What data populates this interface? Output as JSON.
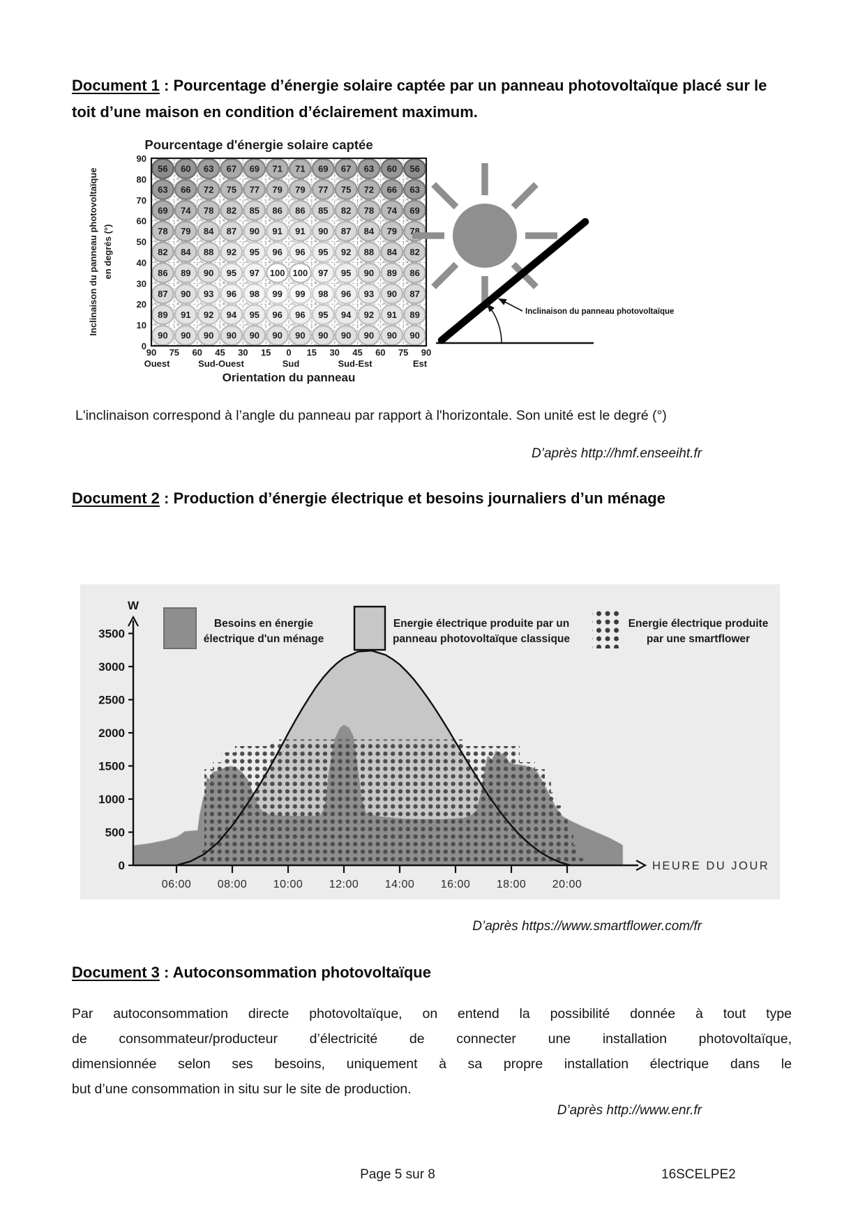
{
  "doc1": {
    "title_label": "Document 1",
    "title_rest": " : Pourcentage d’énergie solaire captée par un panneau photovoltaïque placé sur le toit d’une maison en condition d’éclairement maximum.",
    "note": "L'inclinaison correspond à l’angle du panneau par rapport à l'horizontale. Son unité est le degré (°)",
    "source": "D’après http://hmf.enseeiht.fr",
    "diagram_label": "Inclinaison du panneau photovoltaïque"
  },
  "doc2": {
    "title_label": "Document 2",
    "title_rest": " : Production d’énergie électrique et besoins journaliers d’un ménage",
    "source": "D’après https://www.smartflower.com/fr"
  },
  "doc3": {
    "title_label": "Document 3",
    "title_rest": " : Autoconsommation photovoltaïque",
    "body_lines": [
      "Par autoconsommation directe photovoltaïque, on entend la possibilité donnée à tout type",
      "de consommateur/producteur d’électricité de connecter une installation photovoltaïque,",
      "dimensionnée selon ses besoins, uniquement à sa propre installation électrique dans le",
      "but d’une consommation in situ sur le site de production."
    ],
    "source": "D’après http://www.enr.fr"
  },
  "footer": {
    "center": "Page 5 sur 8",
    "right": "16SCELPE2"
  },
  "chart_data": [
    {
      "type": "heatmap",
      "title": "Pourcentage d'énergie solaire captée",
      "xlabel": "Orientation du panneau",
      "ylabel_line1": "Inclinaison du panneau photovoltaïque",
      "ylabel_line2": "en degrés (°)",
      "y_ticks": [
        "90",
        "80",
        "70",
        "60",
        "50",
        "40",
        "30",
        "20",
        "10",
        "0"
      ],
      "x_boundary_ticks": [
        "90",
        "75",
        "60",
        "45",
        "30",
        "15",
        "0",
        "15",
        "30",
        "45",
        "60",
        "75",
        "90"
      ],
      "x_direction_labels": [
        "Ouest",
        "Sud-Ouest",
        "Sud",
        "Sud-Est",
        "Est"
      ],
      "values_percent": [
        [
          56,
          60,
          63,
          67,
          69,
          71,
          71,
          69,
          67,
          63,
          60,
          56
        ],
        [
          63,
          66,
          72,
          75,
          77,
          79,
          79,
          77,
          75,
          72,
          66,
          63
        ],
        [
          69,
          74,
          78,
          82,
          85,
          86,
          86,
          85,
          82,
          78,
          74,
          69
        ],
        [
          78,
          79,
          84,
          87,
          90,
          91,
          91,
          90,
          87,
          84,
          79,
          78
        ],
        [
          82,
          84,
          88,
          92,
          95,
          96,
          96,
          95,
          92,
          88,
          84,
          82
        ],
        [
          86,
          89,
          90,
          95,
          97,
          100,
          100,
          97,
          95,
          90,
          89,
          86
        ],
        [
          87,
          90,
          93,
          96,
          98,
          99,
          99,
          98,
          96,
          93,
          90,
          87
        ],
        [
          89,
          91,
          92,
          94,
          95,
          96,
          96,
          95,
          94,
          92,
          91,
          89
        ],
        [
          90,
          90,
          90,
          90,
          90,
          90,
          90,
          90,
          90,
          90,
          90,
          90
        ]
      ]
    },
    {
      "type": "area",
      "ylabel": "W",
      "xlabel": "HEURE DU JOUR",
      "ylim": [
        0,
        3500
      ],
      "y_ticks": [
        "3500",
        "3000",
        "2500",
        "2000",
        "1500",
        "1000",
        "500",
        "0"
      ],
      "x_ticks": [
        "06:00",
        "08:00",
        "10:00",
        "12:00",
        "14:00",
        "16:00",
        "18:00",
        "20:00"
      ],
      "colors": {
        "besoins": "#8e8e8e",
        "panneau_fill": "#c7c7c7",
        "curve": "#101010",
        "dots": "#4d4d4d",
        "panel_bg": "#ececec"
      },
      "legend": [
        {
          "label_lines": [
            "Besoins en énergie",
            "électrique d'un ménage"
          ],
          "style": "solid-dark-gray"
        },
        {
          "label_lines": [
            "Energie électrique produite par un",
            "panneau photovoltaïque classique"
          ],
          "style": "light-gray-black-outline"
        },
        {
          "label_lines": [
            "Energie électrique produite",
            "par une smartflower"
          ],
          "style": "dotted"
        }
      ],
      "series": [
        {
          "name": "Besoins en énergie électrique d'un ménage",
          "unit": "W",
          "points_time_w": [
            [
              4.42,
              300
            ],
            [
              5.0,
              330
            ],
            [
              5.6,
              380
            ],
            [
              6.0,
              430
            ],
            [
              6.15,
              470
            ],
            [
              6.3,
              515
            ],
            [
              6.75,
              530
            ],
            [
              6.82,
              760
            ],
            [
              6.95,
              1020
            ],
            [
              7.02,
              1080
            ],
            [
              7.08,
              1340
            ],
            [
              7.18,
              1300
            ],
            [
              7.3,
              1410
            ],
            [
              7.55,
              1440
            ],
            [
              7.75,
              1480
            ],
            [
              7.95,
              1500
            ],
            [
              8.15,
              1470
            ],
            [
              8.35,
              1410
            ],
            [
              8.55,
              1300
            ],
            [
              8.7,
              1150
            ],
            [
              8.85,
              980
            ],
            [
              9.05,
              830
            ],
            [
              9.3,
              775
            ],
            [
              9.8,
              755
            ],
            [
              10.8,
              750
            ],
            [
              11.15,
              760
            ],
            [
              11.3,
              880
            ],
            [
              11.45,
              1420
            ],
            [
              11.65,
              1900
            ],
            [
              11.85,
              2080
            ],
            [
              12.0,
              2125
            ],
            [
              12.2,
              2080
            ],
            [
              12.35,
              1950
            ],
            [
              12.5,
              1500
            ],
            [
              12.65,
              1000
            ],
            [
              12.8,
              800
            ],
            [
              13.2,
              745
            ],
            [
              14.2,
              705
            ],
            [
              15.5,
              700
            ],
            [
              16.3,
              720
            ],
            [
              16.7,
              790
            ],
            [
              16.9,
              1080
            ],
            [
              17.05,
              1480
            ],
            [
              17.15,
              1660
            ],
            [
              17.3,
              1600
            ],
            [
              17.45,
              1740
            ],
            [
              17.6,
              1670
            ],
            [
              17.75,
              1710
            ],
            [
              17.9,
              1570
            ],
            [
              18.1,
              1530
            ],
            [
              18.45,
              1510
            ],
            [
              18.75,
              1480
            ],
            [
              18.95,
              1400
            ],
            [
              19.3,
              1130
            ],
            [
              19.6,
              880
            ],
            [
              19.85,
              740
            ],
            [
              20.15,
              670
            ],
            [
              20.5,
              600
            ],
            [
              21.0,
              510
            ],
            [
              21.5,
              420
            ],
            [
              21.95,
              320
            ],
            [
              22.0,
              300
            ]
          ]
        },
        {
          "name": "Energie électrique produite par un panneau photovoltaïque classique",
          "unit": "W",
          "points_time_w": [
            [
              6.0,
              0
            ],
            [
              6.5,
              60
            ],
            [
              7.0,
              170
            ],
            [
              7.5,
              350
            ],
            [
              8.0,
              600
            ],
            [
              8.5,
              900
            ],
            [
              9.0,
              1230
            ],
            [
              9.25,
              1410
            ],
            [
              9.5,
              1600
            ],
            [
              9.75,
              1790
            ],
            [
              10.0,
              1990
            ],
            [
              10.25,
              2180
            ],
            [
              10.5,
              2360
            ],
            [
              10.75,
              2530
            ],
            [
              11.0,
              2690
            ],
            [
              11.25,
              2830
            ],
            [
              11.5,
              2950
            ],
            [
              11.75,
              3050
            ],
            [
              12.0,
              3130
            ],
            [
              12.5,
              3225
            ],
            [
              13.0,
              3240
            ],
            [
              13.5,
              3175
            ],
            [
              13.75,
              3110
            ],
            [
              14.0,
              3030
            ],
            [
              14.25,
              2925
            ],
            [
              14.5,
              2810
            ],
            [
              14.75,
              2675
            ],
            [
              15.0,
              2530
            ],
            [
              15.25,
              2375
            ],
            [
              15.5,
              2210
            ],
            [
              15.75,
              2040
            ],
            [
              16.0,
              1860
            ],
            [
              16.25,
              1685
            ],
            [
              16.5,
              1510
            ],
            [
              16.75,
              1340
            ],
            [
              17.0,
              1170
            ],
            [
              17.25,
              1010
            ],
            [
              17.5,
              865
            ],
            [
              17.75,
              725
            ],
            [
              18.0,
              600
            ],
            [
              18.25,
              480
            ],
            [
              18.5,
              380
            ],
            [
              18.75,
              290
            ],
            [
              19.0,
              210
            ],
            [
              19.25,
              145
            ],
            [
              19.5,
              90
            ],
            [
              19.75,
              45
            ],
            [
              20.0,
              15
            ],
            [
              20.12,
              0
            ]
          ]
        },
        {
          "name": "Energie électrique produite par une smartflower",
          "unit": "W",
          "outline_time_w": [
            [
              6.88,
              0
            ],
            [
              6.88,
              230
            ],
            [
              7.0,
              230
            ],
            [
              7.0,
              1450
            ],
            [
              7.3,
              1450
            ],
            [
              7.3,
              1555
            ],
            [
              7.62,
              1555
            ],
            [
              7.62,
              1705
            ],
            [
              8.1,
              1705
            ],
            [
              8.1,
              1800
            ],
            [
              9.35,
              1800
            ],
            [
              9.35,
              1852
            ],
            [
              9.68,
              1852
            ],
            [
              9.68,
              1900
            ],
            [
              16.3,
              1900
            ],
            [
              16.3,
              1800
            ],
            [
              18.3,
              1800
            ],
            [
              18.3,
              1558
            ],
            [
              18.85,
              1558
            ],
            [
              18.85,
              1452
            ],
            [
              19.2,
              1452
            ],
            [
              19.2,
              1300
            ],
            [
              19.42,
              1300
            ],
            [
              19.42,
              1100
            ],
            [
              19.62,
              1100
            ],
            [
              19.62,
              905
            ],
            [
              19.82,
              905
            ],
            [
              19.82,
              705
            ],
            [
              20.02,
              705
            ],
            [
              20.02,
              505
            ],
            [
              20.22,
              505
            ],
            [
              20.22,
              305
            ],
            [
              20.42,
              305
            ],
            [
              20.42,
              110
            ],
            [
              20.58,
              110
            ],
            [
              20.58,
              0
            ]
          ]
        }
      ]
    }
  ]
}
